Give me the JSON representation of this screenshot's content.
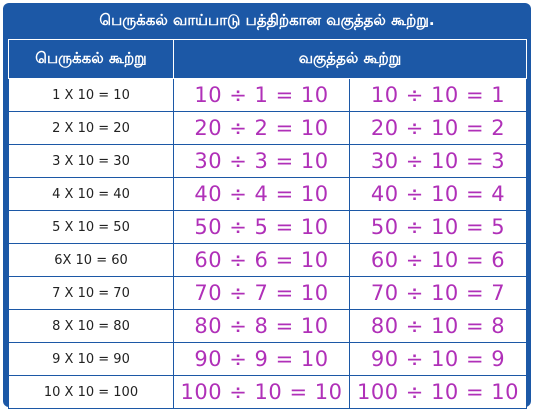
{
  "title": "பெருக்கல் வாய்பாடு பத்திற்கான வகுத்தல் கூற்று.",
  "headers": {
    "multiplication": "பெருக்கல் கூற்று",
    "division": "வகுத்தல் கூற்று"
  },
  "rows": [
    {
      "mult": "1 X 10 = 10",
      "div1": "10 ÷ 1 = 10",
      "div2": "10 ÷ 10 = 1"
    },
    {
      "mult": "2 X 10 = 20",
      "div1": "20 ÷ 2 = 10",
      "div2": "20 ÷ 10 = 2"
    },
    {
      "mult": "3 X 10 = 30",
      "div1": "30 ÷ 3 = 10",
      "div2": "30 ÷ 10 = 3"
    },
    {
      "mult": "4 X 10 = 40",
      "div1": "40 ÷ 4 = 10",
      "div2": "40 ÷ 10 = 4"
    },
    {
      "mult": "5 X 10 = 50",
      "div1": "50 ÷ 5 = 10",
      "div2": "50 ÷ 10 = 5"
    },
    {
      "mult": "6X 10 = 60",
      "div1": "60 ÷ 6 = 10",
      "div2": "60 ÷ 10 = 6"
    },
    {
      "mult": "7 X 10 = 70",
      "div1": "70 ÷ 7 = 10",
      "div2": "70 ÷ 10 = 7"
    },
    {
      "mult": "8 X 10 = 80",
      "div1": "80 ÷ 8 = 10",
      "div2": "80 ÷ 10 = 8"
    },
    {
      "mult": "9 X 10 = 90",
      "div1": "90 ÷ 9 = 10",
      "div2": "90 ÷ 10 = 9"
    },
    {
      "mult": "10 X 10 = 100",
      "div1": "100 ÷ 10 = 10",
      "div2": "100 ÷ 10 = 10"
    }
  ],
  "colors": {
    "header_blue": "#1c58a6",
    "division_text": "#b030b8",
    "multiplication_text": "#222222"
  }
}
